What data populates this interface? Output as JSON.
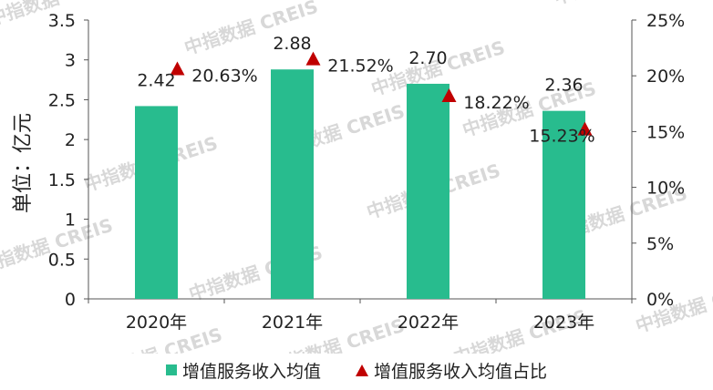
{
  "chart_data": {
    "type": "bar",
    "categories": [
      "2020年",
      "2021年",
      "2022年",
      "2023年"
    ],
    "series": [
      {
        "name": "增值服务收入均值",
        "axis": "left",
        "values": [
          2.42,
          2.88,
          2.7,
          2.36
        ],
        "labels": [
          "2.42",
          "2.88",
          "2.70",
          "2.36"
        ],
        "color": "#28BC8E"
      },
      {
        "name": "增值服务收入均值占比",
        "axis": "right",
        "type": "scatter",
        "marker": "triangle",
        "values": [
          20.63,
          21.52,
          18.22,
          15.23
        ],
        "labels": [
          "20.63%",
          "21.52%",
          "18.22%",
          "15.23%"
        ],
        "color": "#C00000"
      }
    ],
    "ylabel": "单位：亿元",
    "ylim": [
      0,
      3.5
    ],
    "yticks": [
      "0",
      "0.5",
      "1",
      "1.5",
      "2",
      "2.5",
      "3",
      "3.5"
    ],
    "y2lim": [
      0,
      25
    ],
    "y2ticks": [
      "0%",
      "5%",
      "10%",
      "15%",
      "20%",
      "25%"
    ],
    "legend_position": "bottom",
    "grid": false,
    "watermark": "中指数据 CREIS"
  }
}
